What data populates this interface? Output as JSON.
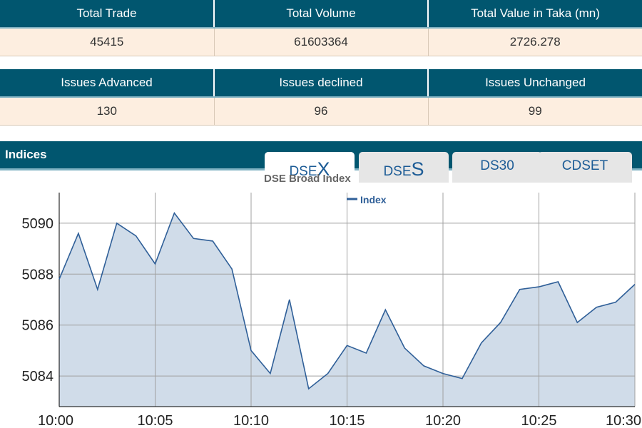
{
  "trade_stats": {
    "headers": [
      "Total Trade",
      "Total Volume",
      "Total Value in Taka (mn)"
    ],
    "values": [
      "45415",
      "61603364",
      "2726.278"
    ]
  },
  "issue_stats": {
    "headers": [
      "Issues Advanced",
      "Issues declined",
      "Issues Unchanged"
    ],
    "values": [
      "130",
      "96",
      "99"
    ]
  },
  "indices": {
    "label": "Indices",
    "tabs": [
      {
        "prefix": "DSE",
        "suffix": "X",
        "active": true
      },
      {
        "prefix": "DSE",
        "suffix": "S",
        "active": false
      },
      {
        "prefix": "DS30",
        "suffix": "",
        "active": false
      },
      {
        "prefix": "CDSET",
        "suffix": "",
        "active": false
      }
    ]
  },
  "colors": {
    "header_bg": "#01566f",
    "row_bg": "#fdeee0",
    "line": "#2f5f98",
    "area_fill": "#d0dce9",
    "tab_text": "#1d5c96"
  },
  "chart_data": {
    "type": "area",
    "title": "DSE Broad Index",
    "legend": {
      "label": "Index",
      "placement": "top-center"
    },
    "xlabel": "",
    "ylabel": "",
    "x_ticks": [
      "10:00",
      "10:05",
      "10:10",
      "10:15",
      "10:20",
      "10:25",
      "10:30"
    ],
    "y_ticks": [
      5084,
      5086,
      5088,
      5090
    ],
    "ylim": [
      5082.8,
      5091.2
    ],
    "grid": true,
    "series": [
      {
        "name": "Index",
        "x": [
          "10:00",
          "10:01",
          "10:02",
          "10:03",
          "10:04",
          "10:05",
          "10:06",
          "10:07",
          "10:08",
          "10:09",
          "10:10",
          "10:11",
          "10:12",
          "10:13",
          "10:14",
          "10:15",
          "10:16",
          "10:17",
          "10:18",
          "10:19",
          "10:20",
          "10:21",
          "10:22",
          "10:23",
          "10:24",
          "10:25",
          "10:26",
          "10:27",
          "10:28",
          "10:29",
          "10:30"
        ],
        "values": [
          5087.8,
          5089.6,
          5087.4,
          5090.0,
          5089.5,
          5088.4,
          5090.4,
          5089.4,
          5089.3,
          5088.2,
          5085.0,
          5084.1,
          5087.0,
          5083.5,
          5084.1,
          5085.2,
          5084.9,
          5086.6,
          5085.1,
          5084.4,
          5084.1,
          5083.9,
          5085.3,
          5086.1,
          5087.4,
          5087.5,
          5087.7,
          5086.1,
          5086.7,
          5086.9,
          5087.6
        ]
      }
    ]
  }
}
